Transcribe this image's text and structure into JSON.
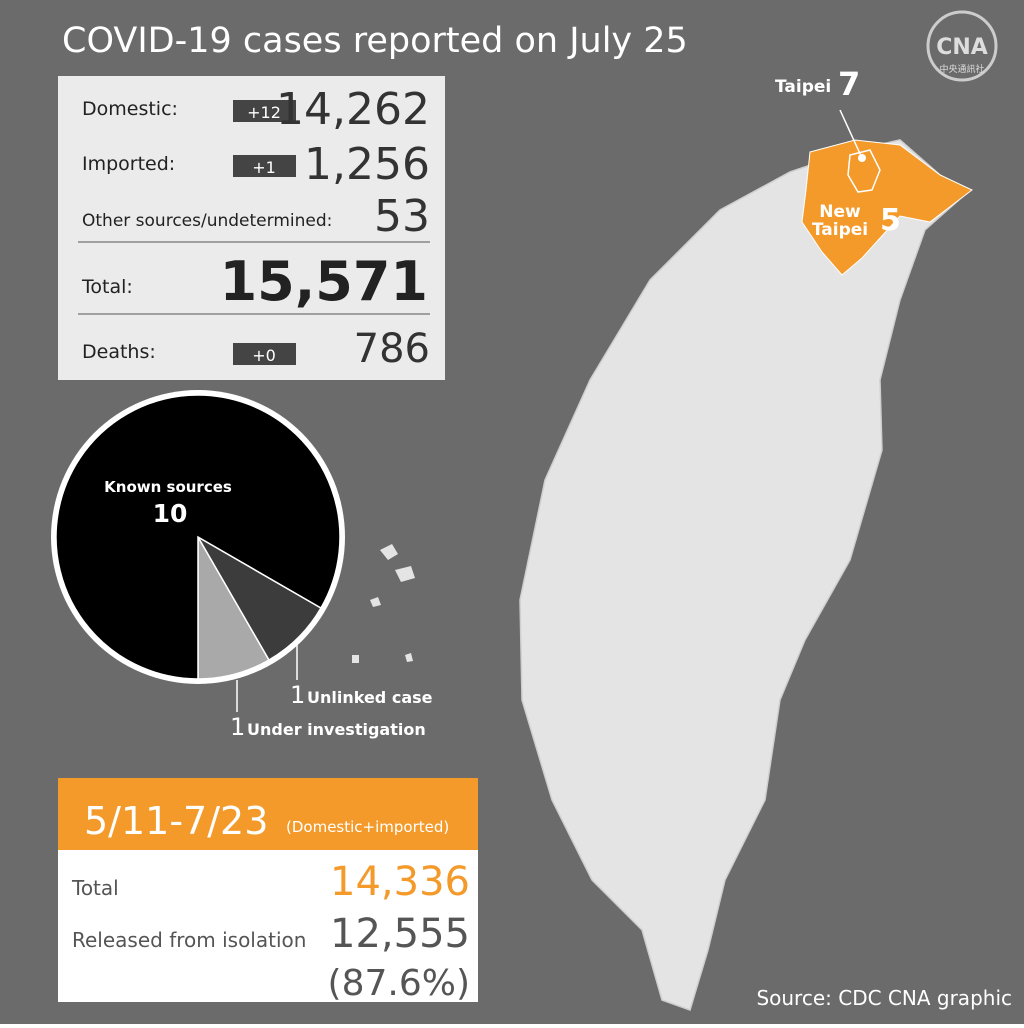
{
  "header": {
    "title": "COVID-19 cases reported on July 25",
    "logo": "CNA",
    "logo_sub": "中央通訊社"
  },
  "stats": {
    "rows": [
      {
        "label": "Domestic:",
        "change": "+12",
        "value": "14,262"
      },
      {
        "label": "Imported:",
        "change": "+1",
        "value": "1,256"
      },
      {
        "label": "Other sources/undetermined:",
        "value": "53"
      }
    ],
    "total": {
      "label": "Total:",
      "value": "15,571"
    },
    "deaths": {
      "label": "Deaths:",
      "change": "+0",
      "value": "786"
    }
  },
  "chart_data": {
    "type": "pie",
    "slices": [
      {
        "name": "Known sources",
        "value": 10,
        "color": "#000000"
      },
      {
        "name": "Unlinked case",
        "value": 1,
        "color": "#3c3c3c"
      },
      {
        "name": "Under investigation",
        "value": 1,
        "color": "#a9a9a9"
      }
    ]
  },
  "summary": {
    "period": "5/11-7/23",
    "note": "(Domestic+imported)",
    "rows": [
      {
        "label": "Total",
        "value": "14,336"
      },
      {
        "label": "Released from isolation",
        "value": "12,555"
      }
    ],
    "percent": "(87.6%)"
  },
  "map": {
    "labels": [
      {
        "name": "Taipei",
        "value": 7
      },
      {
        "name": "New Taipei",
        "value": 5
      }
    ]
  },
  "source": "Source: CDC  CNA graphic"
}
